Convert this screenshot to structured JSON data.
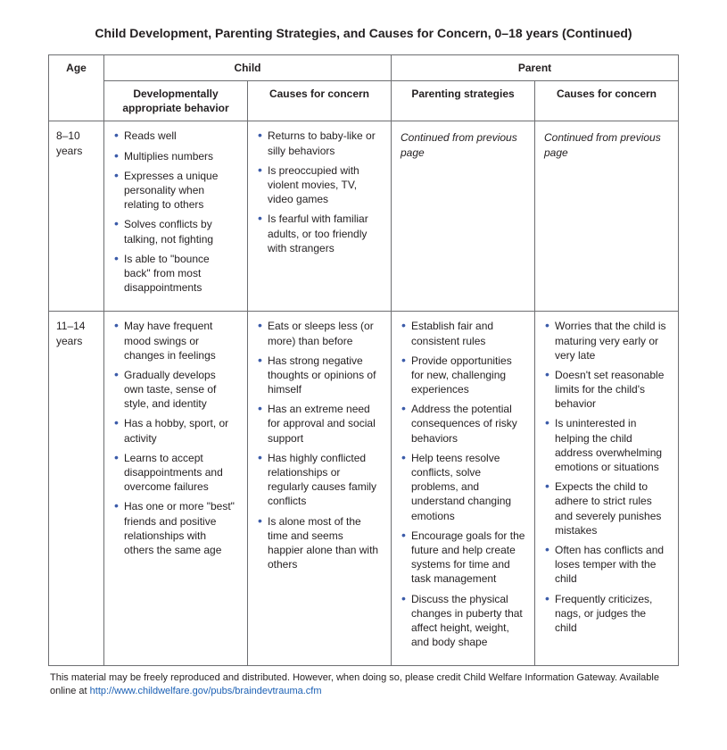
{
  "colors": {
    "text": "#231f20",
    "border": "#6d6e71",
    "bullet": "#3b5ba9",
    "link": "#1a5fb4",
    "background": "#ffffff"
  },
  "fonts": {
    "family": "Helvetica Neue, Helvetica, Arial, sans-serif",
    "title_size_pt": 14,
    "title_weight": 700,
    "body_size_pt": 12,
    "foot_size_pt": 11
  },
  "title": "Child Development, Parenting Strategies, and Causes for Concern, 0–18 years (Continued)",
  "header": {
    "group_child": "Child",
    "group_parent": "Parent",
    "age": "Age",
    "dev": "Developmentally appropriate behavior",
    "child_concern": "Causes for concern",
    "parent_strategy": "Parenting strategies",
    "parent_concern": "Causes for concern"
  },
  "rows": [
    {
      "age": "8–10 years",
      "dev": [
        "Reads well",
        "Multiplies numbers",
        "Expresses a unique personality when relating to others",
        "Solves conflicts by talking, not fighting",
        "Is able to \"bounce back\" from most disappointments"
      ],
      "child_concern": [
        "Returns to baby-like or silly behaviors",
        "Is preoccupied with violent movies, TV, video games",
        "Is fearful with familiar adults, or too friendly with strangers"
      ],
      "parent_strategy_cont": "Continued from previous page",
      "parent_concern_cont": "Continued from previous page"
    },
    {
      "age": "11–14 years",
      "dev": [
        "May have frequent mood swings or changes in feelings",
        "Gradually develops own taste, sense of style, and identity",
        "Has a hobby, sport, or activity",
        "Learns to accept disappointments and overcome failures",
        "Has one or more \"best\" friends and positive relationships with others the same age"
      ],
      "child_concern": [
        "Eats or sleeps less (or more) than before",
        "Has strong negative thoughts or opinions of himself",
        "Has an extreme need for approval and social support",
        "Has highly conflicted relationships or regularly causes family conflicts",
        "Is alone most of the time and seems happier alone than with others"
      ],
      "parent_strategy": [
        "Establish fair and consistent rules",
        "Provide opportunities for new, challenging experiences",
        "Address the potential consequences of risky behaviors",
        "Help teens resolve conflicts, solve problems, and understand changing emotions",
        "Encourage goals for the future and help create systems for time and task management",
        "Discuss the physical changes in puberty that affect height, weight, and body shape"
      ],
      "parent_concern": [
        "Worries that the child is maturing very early or very late",
        "Doesn't set reasonable limits for the child's behavior",
        "Is uninterested in helping the child address overwhelming emotions or situations",
        "Expects the child to adhere to strict rules and severely punishes mistakes",
        "Often has conflicts and loses temper with the child",
        "Frequently criticizes, nags, or judges the child"
      ]
    }
  ],
  "footnote": {
    "text_before": "This material may be freely reproduced and distributed. However, when doing so, please credit Child Welfare Information Gateway. Available online at ",
    "link_text": "http://www.childwelfare.gov/pubs/braindevtrauma.cfm"
  }
}
